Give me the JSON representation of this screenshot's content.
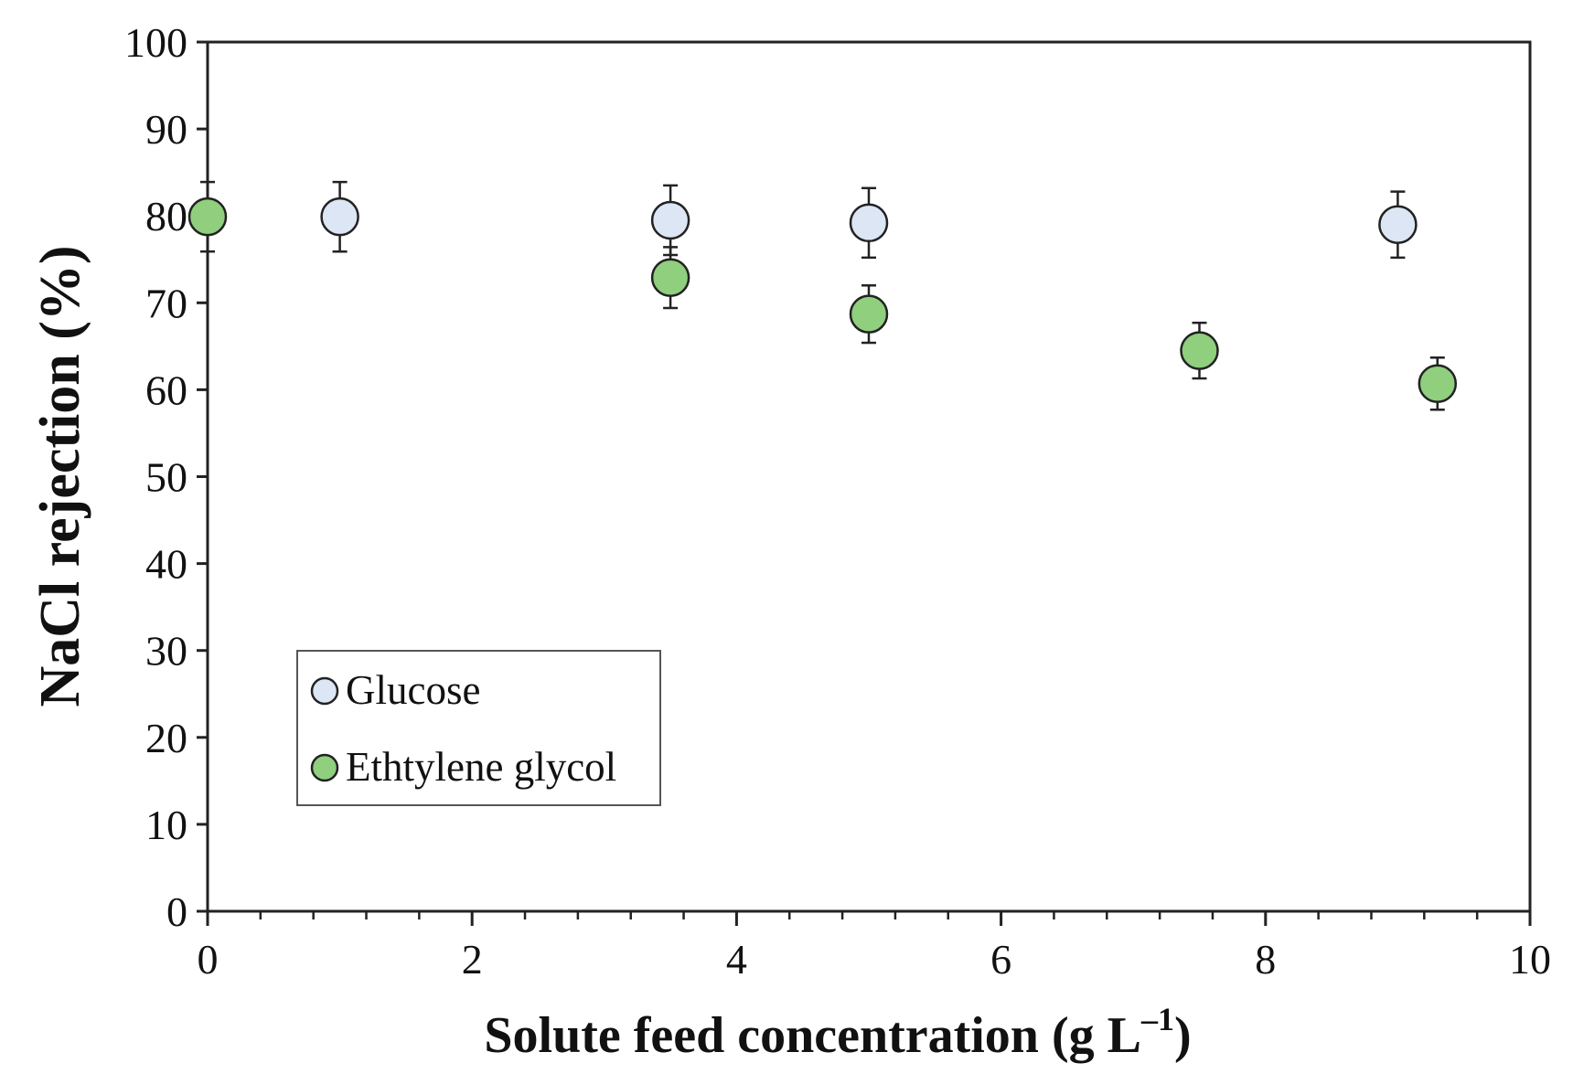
{
  "chart_data": {
    "type": "scatter",
    "title": "",
    "xlabel": "Solute feed concentration (g L",
    "xlabel_sup": "–1",
    "xlabel_end": ")",
    "ylabel": "NaCl rejection (%)",
    "xlim": [
      0,
      10
    ],
    "ylim": [
      0,
      100
    ],
    "x_major_ticks": [
      0,
      2,
      4,
      6,
      8,
      10
    ],
    "x_minor_step": 0.4,
    "y_ticks": [
      0,
      10,
      20,
      30,
      40,
      50,
      60,
      70,
      80,
      90,
      100
    ],
    "x_tick_labels": [
      "0",
      "2",
      "4",
      "6",
      "8",
      "10"
    ],
    "y_tick_labels": [
      "0",
      "10",
      "20",
      "30",
      "40",
      "50",
      "60",
      "70",
      "80",
      "90",
      "100"
    ],
    "grid": false,
    "legend_position": "lower-left",
    "series": [
      {
        "name": "Glucose",
        "color": "#dce6f4",
        "points": [
          {
            "x": 1.0,
            "y": 79.9,
            "err": 4.0
          },
          {
            "x": 3.5,
            "y": 79.5,
            "err": 4.0
          },
          {
            "x": 5.0,
            "y": 79.2,
            "err": 4.0
          },
          {
            "x": 9.0,
            "y": 79.0,
            "err": 3.8
          }
        ]
      },
      {
        "name": "Ethtylene glycol",
        "color": "#8fcf7e",
        "points": [
          {
            "x": 0.0,
            "y": 79.9,
            "err": 4.0
          },
          {
            "x": 3.5,
            "y": 72.9,
            "err": 3.5
          },
          {
            "x": 5.0,
            "y": 68.7,
            "err": 3.3
          },
          {
            "x": 7.5,
            "y": 64.5,
            "err": 3.2
          },
          {
            "x": 9.3,
            "y": 60.7,
            "err": 3.0
          }
        ]
      }
    ]
  }
}
